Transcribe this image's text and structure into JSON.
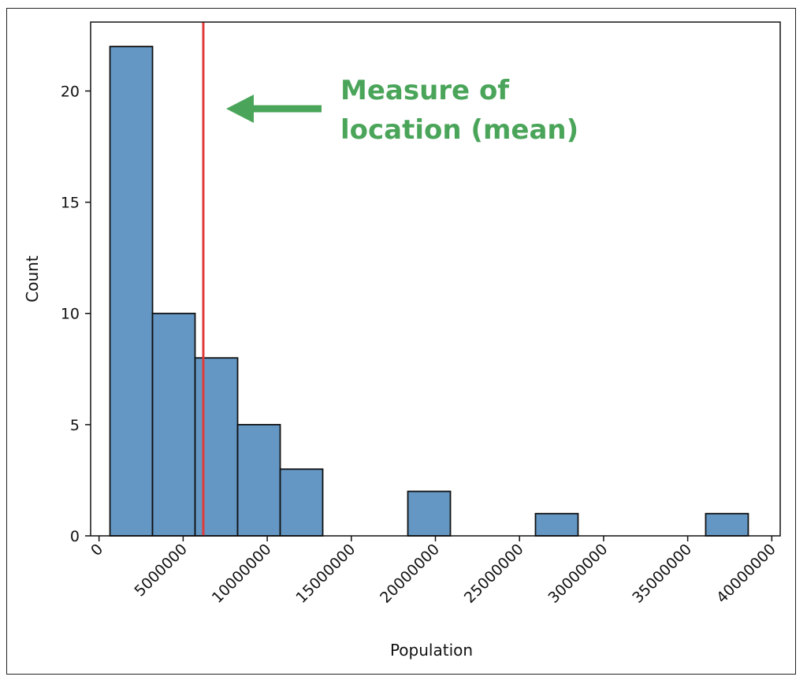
{
  "chart_data": {
    "type": "bar",
    "subtype": "histogram",
    "title": "",
    "xlabel": "Population",
    "ylabel": "Count",
    "xlim": [
      -500000,
      40500000
    ],
    "ylim": [
      0,
      23.1
    ],
    "xticks": [
      0,
      5000000,
      10000000,
      15000000,
      20000000,
      25000000,
      30000000,
      35000000,
      40000000
    ],
    "xtick_labels": [
      "0",
      "5000000",
      "10000000",
      "15000000",
      "20000000",
      "25000000",
      "30000000",
      "35000000",
      "40000000"
    ],
    "yticks": [
      0,
      5,
      10,
      15,
      20
    ],
    "ytick_labels": [
      "0",
      "5",
      "10",
      "15",
      "20"
    ],
    "bins": [
      {
        "x0": 650000,
        "x1": 3180000,
        "count": 22
      },
      {
        "x0": 3180000,
        "x1": 5710000,
        "count": 10
      },
      {
        "x0": 5710000,
        "x1": 8240000,
        "count": 8
      },
      {
        "x0": 8240000,
        "x1": 10770000,
        "count": 5
      },
      {
        "x0": 10770000,
        "x1": 13300000,
        "count": 3
      },
      {
        "x0": 13300000,
        "x1": 15830000,
        "count": 0
      },
      {
        "x0": 15830000,
        "x1": 18360000,
        "count": 0
      },
      {
        "x0": 18360000,
        "x1": 20890000,
        "count": 2
      },
      {
        "x0": 20890000,
        "x1": 23420000,
        "count": 0
      },
      {
        "x0": 23420000,
        "x1": 25950000,
        "count": 0
      },
      {
        "x0": 25950000,
        "x1": 28480000,
        "count": 1
      },
      {
        "x0": 28480000,
        "x1": 31010000,
        "count": 0
      },
      {
        "x0": 31010000,
        "x1": 33540000,
        "count": 0
      },
      {
        "x0": 33540000,
        "x1": 36070000,
        "count": 0
      },
      {
        "x0": 36070000,
        "x1": 38600000,
        "count": 1
      }
    ],
    "mean_line": {
      "value": 6200000,
      "color": "#e03b3b"
    },
    "annotation": {
      "lines": [
        "Measure of",
        "location (mean)"
      ],
      "color": "#4aa55a"
    },
    "bar_color": "#6497c4",
    "bar_edge_color": "#111111",
    "grid": false,
    "legend": "none"
  }
}
